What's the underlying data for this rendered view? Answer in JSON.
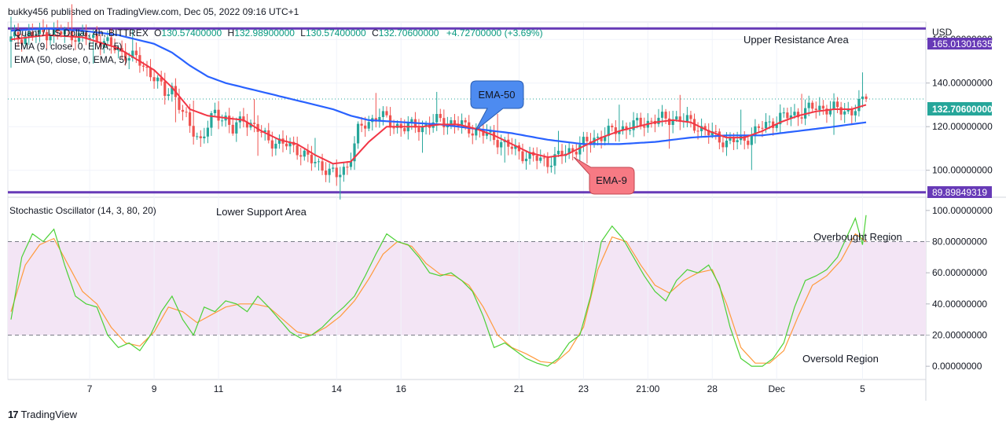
{
  "header": {
    "credit": "bukky456 published on TradingView.com, Dec 05, 2022 09:16 UTC+1"
  },
  "watermark": {
    "text": "TradingView",
    "logo_text": "17"
  },
  "legend": {
    "symbol": "Quant / US Dollar, 4h, BITTREX",
    "o_label": "O",
    "o": "130.57400000",
    "h_label": "H",
    "h": "132.98900000",
    "l_label": "L",
    "l": "130.57400000",
    "c_label": "C",
    "c": "132.70600000",
    "change": "+4.72700000 (+3.69%)",
    "ema9_line": "EMA (9, close, 0, EMA, 5)",
    "ema50_line": "EMA (50, close, 0, EMA, 5)"
  },
  "annotations": {
    "upper": "Upper Resistance Area",
    "lower": "Lower Support Area",
    "ema50": "EMA-50",
    "ema9": "EMA-9",
    "overbought": "Overbought Region",
    "oversold": "Oversold Region"
  },
  "price_axis": {
    "currency": "USD",
    "ticks": [
      "160.00000000",
      "140.00000000",
      "120.00000000",
      "100.00000000"
    ],
    "tick_values": [
      160,
      140,
      120,
      100
    ],
    "upper_level": "165.01301635",
    "current": "132.70600000",
    "lower_level": "89.89849319"
  },
  "osc_axis": {
    "ticks": [
      "100.00000000",
      "80.00000000",
      "60.00000000",
      "40.00000000",
      "20.00000000",
      "0.00000000"
    ],
    "tick_values": [
      100,
      80,
      60,
      40,
      20,
      0
    ]
  },
  "stoch_label": "Stochastic Oscillator (14, 3, 80, 20)",
  "time_axis": {
    "labels": [
      "7",
      "9",
      "11",
      "14",
      "16",
      "21",
      "23",
      "21:00",
      "28",
      "Dec",
      "5"
    ],
    "bar_index": [
      22,
      40,
      58,
      91,
      109,
      142,
      160,
      178,
      196,
      214,
      238
    ]
  },
  "colors": {
    "up": "#26a69a",
    "down": "#ef5350",
    "ema9": "#f23645",
    "ema50": "#2962ff",
    "level": "#673ab7",
    "stoch_k": "#4cd137",
    "stoch_d": "#ff9a3c",
    "band": "#f3e5f5",
    "ema50_tag": "#4d8bf0",
    "ema9_tag": "#f77a84"
  },
  "chart_data": [
    {
      "type": "candlestick",
      "title": "Quant / US Dollar, 4h, BITTREX",
      "ylim": [
        88,
        168
      ],
      "levels": [
        {
          "name": "Upper Resistance Area",
          "value": 165.01301635
        },
        {
          "name": "Lower Support Area",
          "value": 89.89849319
        }
      ],
      "last_close": 132.706,
      "bars": 240,
      "anchors_close": [
        [
          0,
          160
        ],
        [
          5,
          162
        ],
        [
          10,
          163
        ],
        [
          15,
          163
        ],
        [
          20,
          161
        ],
        [
          25,
          160
        ],
        [
          30,
          155
        ],
        [
          35,
          151
        ],
        [
          40,
          143
        ],
        [
          43,
          135
        ],
        [
          45,
          138
        ],
        [
          48,
          126
        ],
        [
          50,
          120
        ],
        [
          53,
          114
        ],
        [
          55,
          120
        ],
        [
          57,
          126
        ],
        [
          60,
          124
        ],
        [
          62,
          118
        ],
        [
          65,
          124
        ],
        [
          68,
          120
        ],
        [
          72,
          114
        ],
        [
          76,
          112
        ],
        [
          80,
          110
        ],
        [
          84,
          104
        ],
        [
          88,
          101
        ],
        [
          91,
          97
        ],
        [
          94,
          102
        ],
        [
          97,
          118
        ],
        [
          100,
          122
        ],
        [
          103,
          126
        ],
        [
          106,
          121
        ],
        [
          110,
          120
        ],
        [
          115,
          120
        ],
        [
          120,
          123
        ],
        [
          125,
          121
        ],
        [
          130,
          118
        ],
        [
          135,
          115
        ],
        [
          140,
          110
        ],
        [
          145,
          106
        ],
        [
          150,
          104
        ],
        [
          155,
          108
        ],
        [
          160,
          112
        ],
        [
          165,
          116
        ],
        [
          170,
          119
        ],
        [
          175,
          121
        ],
        [
          180,
          123
        ],
        [
          185,
          124
        ],
        [
          190,
          122
        ],
        [
          195,
          117
        ],
        [
          200,
          113
        ],
        [
          205,
          114
        ],
        [
          210,
          120
        ],
        [
          215,
          124
        ],
        [
          220,
          126
        ],
        [
          225,
          129
        ],
        [
          230,
          128
        ],
        [
          235,
          127
        ],
        [
          239,
          132.706
        ]
      ],
      "anchors_ema9": [
        [
          0,
          160
        ],
        [
          10,
          162
        ],
        [
          20,
          161
        ],
        [
          30,
          156
        ],
        [
          40,
          146
        ],
        [
          45,
          138
        ],
        [
          50,
          128
        ],
        [
          55,
          125
        ],
        [
          60,
          124
        ],
        [
          65,
          123
        ],
        [
          70,
          118
        ],
        [
          75,
          114
        ],
        [
          80,
          112
        ],
        [
          85,
          107
        ],
        [
          90,
          103
        ],
        [
          95,
          104
        ],
        [
          100,
          113
        ],
        [
          105,
          120
        ],
        [
          110,
          120
        ],
        [
          115,
          120
        ],
        [
          120,
          121
        ],
        [
          125,
          121
        ],
        [
          130,
          119
        ],
        [
          135,
          116
        ],
        [
          140,
          112
        ],
        [
          145,
          108
        ],
        [
          150,
          106
        ],
        [
          155,
          107
        ],
        [
          160,
          111
        ],
        [
          165,
          115
        ],
        [
          170,
          118
        ],
        [
          175,
          120
        ],
        [
          180,
          122
        ],
        [
          185,
          123
        ],
        [
          190,
          122
        ],
        [
          195,
          118
        ],
        [
          200,
          115
        ],
        [
          205,
          115
        ],
        [
          210,
          118
        ],
        [
          215,
          122
        ],
        [
          220,
          125
        ],
        [
          225,
          127
        ],
        [
          230,
          128
        ],
        [
          235,
          128
        ],
        [
          239,
          130
        ]
      ],
      "anchors_ema50": [
        [
          0,
          164
        ],
        [
          10,
          165
        ],
        [
          20,
          164
        ],
        [
          30,
          162
        ],
        [
          40,
          158
        ],
        [
          45,
          154
        ],
        [
          50,
          148
        ],
        [
          55,
          143
        ],
        [
          60,
          140
        ],
        [
          70,
          136
        ],
        [
          80,
          132
        ],
        [
          90,
          128
        ],
        [
          95,
          125
        ],
        [
          100,
          123
        ],
        [
          110,
          122
        ],
        [
          120,
          121
        ],
        [
          130,
          119
        ],
        [
          140,
          117
        ],
        [
          150,
          114
        ],
        [
          160,
          112
        ],
        [
          170,
          112
        ],
        [
          180,
          113
        ],
        [
          190,
          115
        ],
        [
          200,
          116
        ],
        [
          210,
          116
        ],
        [
          220,
          118
        ],
        [
          230,
          120
        ],
        [
          239,
          122
        ]
      ]
    },
    {
      "type": "line",
      "title": "Stochastic Oscillator (14, 3, 80, 20)",
      "ylim": [
        -8,
        108
      ],
      "bands": [
        80,
        20
      ],
      "series": [
        {
          "name": "%K",
          "points": [
            [
              0,
              30
            ],
            [
              3,
              70
            ],
            [
              6,
              85
            ],
            [
              9,
              80
            ],
            [
              12,
              88
            ],
            [
              15,
              65
            ],
            [
              18,
              45
            ],
            [
              21,
              40
            ],
            [
              24,
              38
            ],
            [
              27,
              20
            ],
            [
              30,
              12
            ],
            [
              33,
              15
            ],
            [
              36,
              10
            ],
            [
              39,
              20
            ],
            [
              42,
              35
            ],
            [
              45,
              45
            ],
            [
              48,
              30
            ],
            [
              51,
              20
            ],
            [
              54,
              38
            ],
            [
              57,
              35
            ],
            [
              60,
              42
            ],
            [
              63,
              40
            ],
            [
              66,
              35
            ],
            [
              69,
              45
            ],
            [
              72,
              38
            ],
            [
              75,
              30
            ],
            [
              78,
              22
            ],
            [
              81,
              18
            ],
            [
              84,
              20
            ],
            [
              87,
              25
            ],
            [
              90,
              32
            ],
            [
              93,
              38
            ],
            [
              96,
              45
            ],
            [
              99,
              58
            ],
            [
              102,
              72
            ],
            [
              105,
              85
            ],
            [
              108,
              80
            ],
            [
              111,
              78
            ],
            [
              114,
              70
            ],
            [
              117,
              60
            ],
            [
              120,
              58
            ],
            [
              123,
              60
            ],
            [
              126,
              55
            ],
            [
              129,
              48
            ],
            [
              132,
              32
            ],
            [
              135,
              12
            ],
            [
              138,
              15
            ],
            [
              141,
              10
            ],
            [
              144,
              5
            ],
            [
              147,
              2
            ],
            [
              150,
              0
            ],
            [
              153,
              5
            ],
            [
              156,
              15
            ],
            [
              159,
              20
            ],
            [
              162,
              45
            ],
            [
              165,
              80
            ],
            [
              168,
              90
            ],
            [
              171,
              82
            ],
            [
              174,
              70
            ],
            [
              177,
              58
            ],
            [
              180,
              48
            ],
            [
              183,
              42
            ],
            [
              186,
              55
            ],
            [
              189,
              62
            ],
            [
              192,
              60
            ],
            [
              195,
              65
            ],
            [
              198,
              52
            ],
            [
              201,
              25
            ],
            [
              204,
              5
            ],
            [
              207,
              0
            ],
            [
              210,
              0
            ],
            [
              213,
              5
            ],
            [
              216,
              15
            ],
            [
              219,
              38
            ],
            [
              222,
              55
            ],
            [
              225,
              58
            ],
            [
              228,
              62
            ],
            [
              231,
              70
            ],
            [
              234,
              85
            ],
            [
              236,
              95
            ],
            [
              238,
              78
            ],
            [
              239,
              97
            ]
          ]
        },
        {
          "name": "%D",
          "points": [
            [
              0,
              35
            ],
            [
              4,
              65
            ],
            [
              8,
              78
            ],
            [
              12,
              82
            ],
            [
              16,
              65
            ],
            [
              20,
              48
            ],
            [
              24,
              40
            ],
            [
              28,
              25
            ],
            [
              32,
              15
            ],
            [
              36,
              13
            ],
            [
              40,
              22
            ],
            [
              44,
              38
            ],
            [
              48,
              35
            ],
            [
              52,
              28
            ],
            [
              56,
              33
            ],
            [
              60,
              38
            ],
            [
              64,
              40
            ],
            [
              68,
              40
            ],
            [
              72,
              38
            ],
            [
              76,
              30
            ],
            [
              80,
              22
            ],
            [
              84,
              20
            ],
            [
              88,
              25
            ],
            [
              92,
              32
            ],
            [
              96,
              42
            ],
            [
              100,
              56
            ],
            [
              104,
              72
            ],
            [
              108,
              80
            ],
            [
              112,
              77
            ],
            [
              116,
              66
            ],
            [
              120,
              59
            ],
            [
              124,
              58
            ],
            [
              128,
              52
            ],
            [
              132,
              38
            ],
            [
              136,
              20
            ],
            [
              140,
              12
            ],
            [
              144,
              8
            ],
            [
              148,
              3
            ],
            [
              152,
              2
            ],
            [
              156,
              10
            ],
            [
              160,
              25
            ],
            [
              164,
              62
            ],
            [
              168,
              83
            ],
            [
              172,
              80
            ],
            [
              176,
              65
            ],
            [
              180,
              52
            ],
            [
              184,
              47
            ],
            [
              188,
              55
            ],
            [
              192,
              60
            ],
            [
              196,
              62
            ],
            [
              200,
              40
            ],
            [
              204,
              12
            ],
            [
              208,
              2
            ],
            [
              212,
              2
            ],
            [
              216,
              10
            ],
            [
              220,
              32
            ],
            [
              224,
              52
            ],
            [
              228,
              58
            ],
            [
              232,
              68
            ],
            [
              236,
              85
            ],
            [
              239,
              80
            ]
          ]
        }
      ]
    }
  ]
}
